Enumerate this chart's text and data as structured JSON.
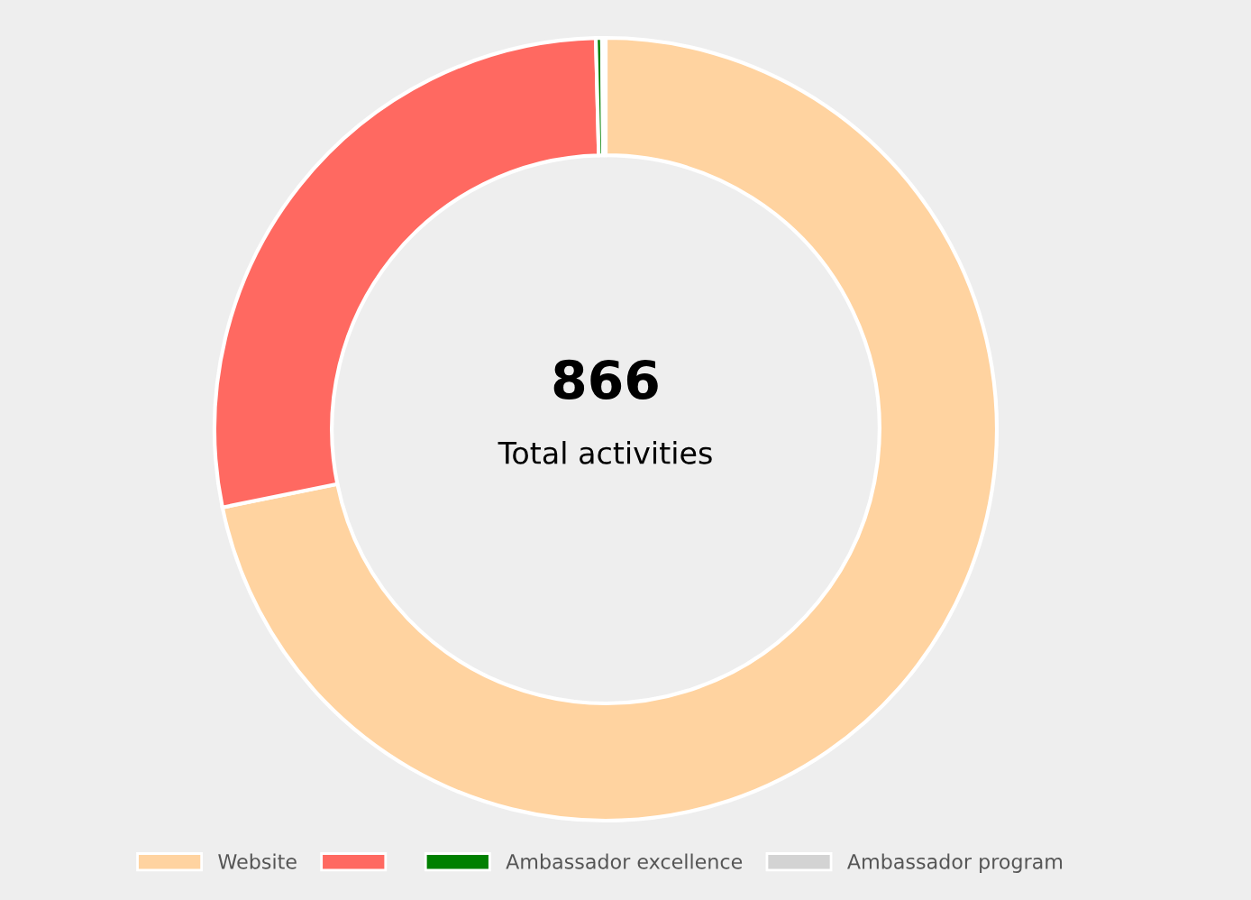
{
  "chart_data": {
    "type": "donut",
    "title": "866",
    "subtitle": "Total activities",
    "categories": [
      "Website",
      null,
      "Ambassador excellence",
      "Ambassador program"
    ],
    "values": [
      71.8,
      27.8,
      0.25,
      0.15
    ],
    "colors": [
      "#ffd3a0",
      "#ff6961",
      "#008000",
      "#d3d3d3"
    ],
    "legend": "bottom"
  }
}
